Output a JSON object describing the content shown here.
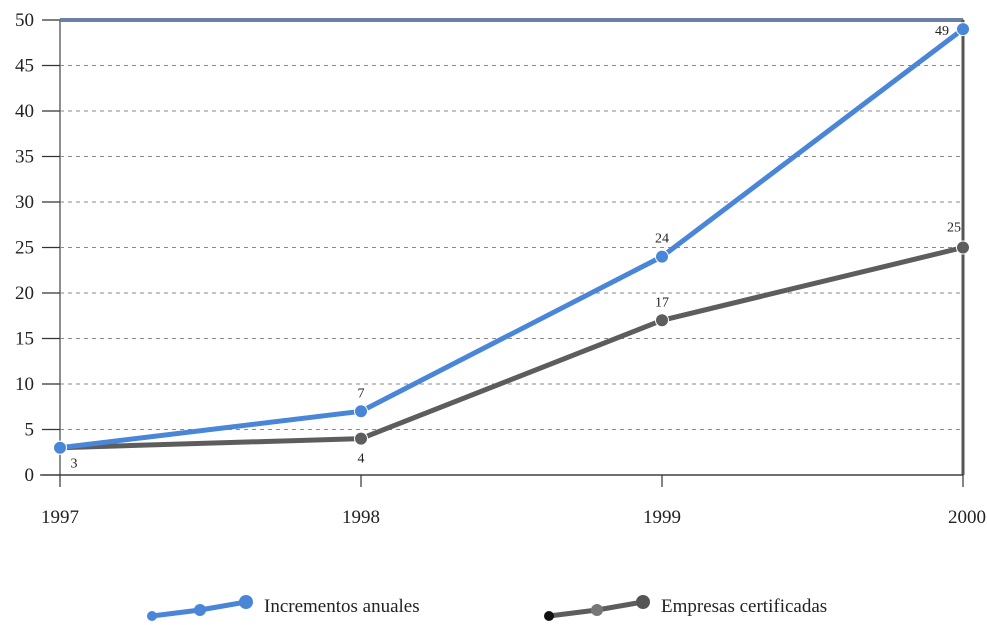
{
  "chart_data": {
    "type": "line",
    "categories": [
      "1997",
      "1998",
      "1999",
      "2000"
    ],
    "ylim": [
      0,
      50
    ],
    "yticks": [
      0,
      5,
      10,
      15,
      20,
      25,
      30,
      35,
      40,
      45,
      50
    ],
    "grid": true,
    "legend_position": "bottom",
    "series": [
      {
        "name": "Incrementos anuales",
        "values": [
          3,
          7,
          24,
          49
        ],
        "color": "#4a86d8",
        "labels": [
          "3",
          "7",
          "24",
          "49"
        ]
      },
      {
        "name": "Empresas certificadas",
        "values": [
          3,
          4,
          17,
          25
        ],
        "color": "#5d5d5d",
        "labels": [
          "",
          "4",
          "17",
          "25"
        ]
      }
    ]
  },
  "legend": {
    "incrementos": "Incrementos anuales",
    "empresas": "Empresas certificadas"
  }
}
